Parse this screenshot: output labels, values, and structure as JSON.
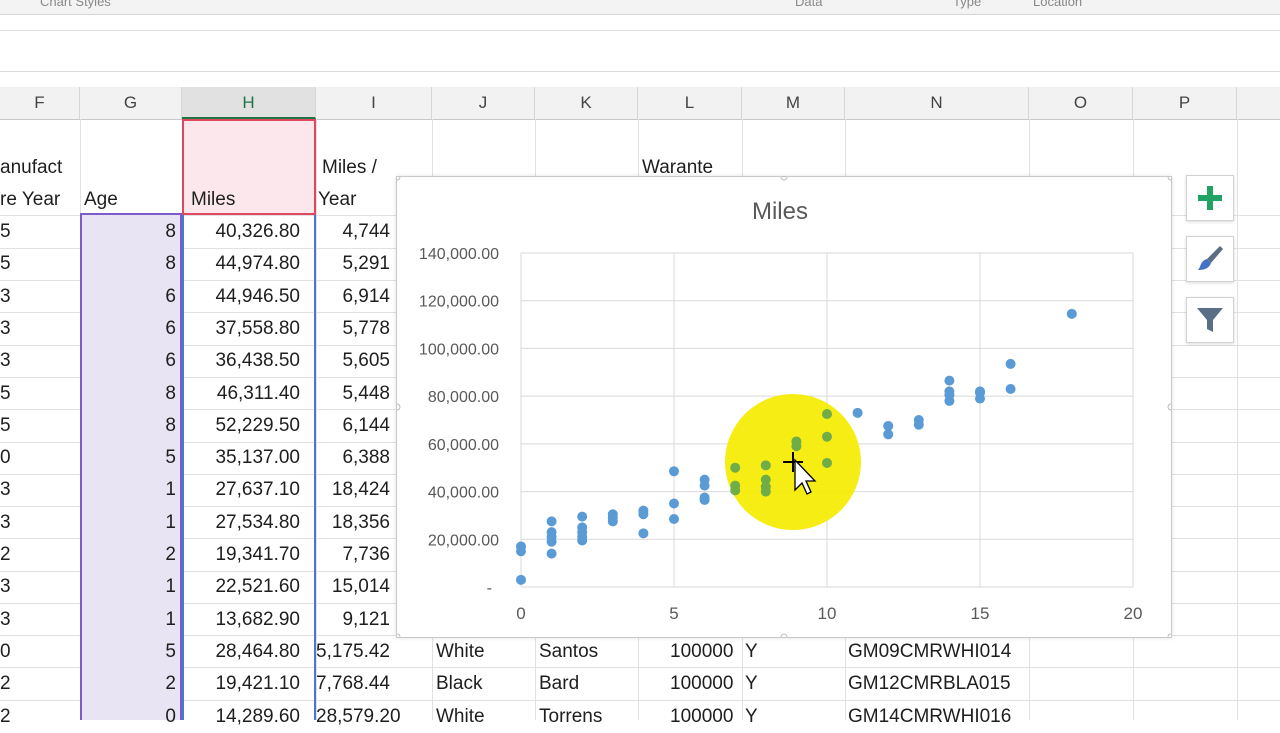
{
  "ribbon": {
    "group_chart_styles": "Chart Styles",
    "group_data": "Data",
    "group_type": "Type",
    "group_location": "Location"
  },
  "columns": [
    "F",
    "G",
    "H",
    "I",
    "J",
    "K",
    "L",
    "M",
    "N",
    "O",
    "P"
  ],
  "headers": {
    "f_line1": "anufact",
    "f_line2": "re Year",
    "g": "Age",
    "h": "Miles",
    "i_line1": "Miles /",
    "i_line2": "Year",
    "l": "Warante"
  },
  "rows": [
    {
      "f": "5",
      "age": "8",
      "miles": "40,326.80",
      "per_year": "4,744"
    },
    {
      "f": "5",
      "age": "8",
      "miles": "44,974.80",
      "per_year": "5,291"
    },
    {
      "f": "3",
      "age": "6",
      "miles": "44,946.50",
      "per_year": "6,914"
    },
    {
      "f": "3",
      "age": "6",
      "miles": "37,558.80",
      "per_year": "5,778"
    },
    {
      "f": "3",
      "age": "6",
      "miles": "36,438.50",
      "per_year": "5,605"
    },
    {
      "f": "5",
      "age": "8",
      "miles": "46,311.40",
      "per_year": "5,448"
    },
    {
      "f": "5",
      "age": "8",
      "miles": "52,229.50",
      "per_year": "6,144"
    },
    {
      "f": "0",
      "age": "5",
      "miles": "35,137.00",
      "per_year": "6,388"
    },
    {
      "f": "3",
      "age": "1",
      "miles": "27,637.10",
      "per_year": "18,424"
    },
    {
      "f": "3",
      "age": "1",
      "miles": "27,534.80",
      "per_year": "18,356"
    },
    {
      "f": "2",
      "age": "2",
      "miles": "19,341.70",
      "per_year": "7,736"
    },
    {
      "f": "3",
      "age": "1",
      "miles": "22,521.60",
      "per_year": "15,014"
    },
    {
      "f": "3",
      "age": "1",
      "miles": "13,682.90",
      "per_year": "9,121"
    },
    {
      "f": "0",
      "age": "5",
      "miles": "28,464.80",
      "per_year": "5,175.42",
      "color": "White",
      "name": "Santos",
      "warranty": "100000",
      "flag": "Y",
      "vin": "GM09CMRWHI014"
    },
    {
      "f": "2",
      "age": "2",
      "miles": "19,421.10",
      "per_year": "7,768.44",
      "color": "Black",
      "name": "Bard",
      "warranty": "100000",
      "flag": "Y",
      "vin": "GM12CMRBLA015"
    },
    {
      "f": "2",
      "age": "0",
      "miles": "14,289.60",
      "per_year": "28,579.20",
      "color": "White",
      "name": "Torrens",
      "warranty": "100000",
      "flag": "Y",
      "vin": "GM14CMRWHI016"
    }
  ],
  "chart_buttons": {
    "add_element": "plus-icon",
    "styles": "paintbrush-icon",
    "filters": "funnel-icon"
  },
  "colors": {
    "series_blue": "#5b9bd5",
    "highlight_green": "#70ad47",
    "cursor_highlight": "#f5ec00",
    "age_range": "#7b5cc9",
    "miles_header": "#e0475f",
    "miles_range": "#4a78d0"
  },
  "chart_data": {
    "type": "scatter",
    "title": "Miles",
    "xlim": [
      0,
      20
    ],
    "ylim": [
      0,
      140000
    ],
    "x_ticks": [
      "0",
      "5",
      "10",
      "15",
      "20"
    ],
    "y_ticks": [
      "-",
      "20,000.00",
      "40,000.00",
      "60,000.00",
      "80,000.00",
      "100,000.00",
      "120,000.00",
      "140,000.00"
    ],
    "grid": true,
    "series": [
      {
        "points": [
          [
            0,
            3000
          ],
          [
            0,
            15000
          ],
          [
            0,
            17000
          ],
          [
            1,
            14000
          ],
          [
            1,
            19000
          ],
          [
            1,
            21000
          ],
          [
            1,
            23000
          ],
          [
            1,
            27500
          ],
          [
            2,
            19500
          ],
          [
            2,
            21000
          ],
          [
            2,
            23000
          ],
          [
            2,
            25000
          ],
          [
            2,
            29500
          ],
          [
            3,
            27500
          ],
          [
            3,
            29000
          ],
          [
            3,
            30500
          ],
          [
            4,
            22500
          ],
          [
            4,
            30500
          ],
          [
            4,
            32000
          ],
          [
            5,
            28500
          ],
          [
            5,
            35000
          ],
          [
            5,
            48500
          ],
          [
            6,
            36500
          ],
          [
            6,
            37500
          ],
          [
            6,
            42500
          ],
          [
            6,
            45000
          ],
          [
            11,
            73000
          ],
          [
            12,
            64000
          ],
          [
            12,
            67500
          ],
          [
            13,
            68000
          ],
          [
            13,
            70000
          ],
          [
            14,
            78000
          ],
          [
            14,
            80500
          ],
          [
            14,
            82000
          ],
          [
            14,
            86500
          ],
          [
            15,
            79000
          ],
          [
            15,
            81500
          ],
          [
            15,
            82000
          ],
          [
            16,
            83000
          ],
          [
            16,
            93500
          ],
          [
            18,
            114500
          ]
        ]
      },
      {
        "highlighted": true,
        "points": [
          [
            7,
            40500
          ],
          [
            7,
            42500
          ],
          [
            7,
            50000
          ],
          [
            8,
            40000
          ],
          [
            8,
            42000
          ],
          [
            8,
            45000
          ],
          [
            8,
            51000
          ],
          [
            9,
            59000
          ],
          [
            9,
            61000
          ],
          [
            10,
            52000
          ],
          [
            10,
            63000
          ],
          [
            10,
            72500
          ]
        ]
      }
    ]
  }
}
